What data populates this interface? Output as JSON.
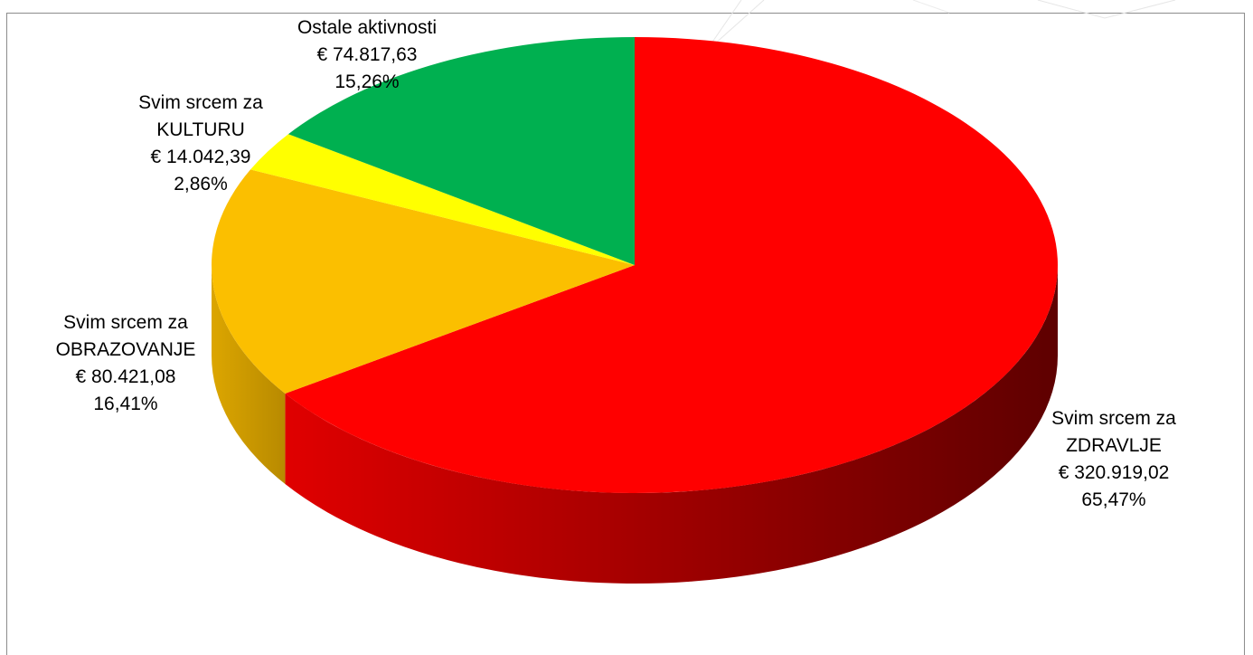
{
  "chart_data": {
    "type": "pie",
    "style": "3d",
    "currency_symbol": "€",
    "slices": [
      {
        "label_lines": [
          "Svim srcem za",
          "ZDRAVLJE"
        ],
        "amount": "€ 320.919,02",
        "percent_label": "65,47%",
        "percent": 65.47,
        "value": 320919.02,
        "color": "#ff0000",
        "side_color_light": "#e00000",
        "side_color_dark": "#5e0000"
      },
      {
        "label_lines": [
          "Svim srcem za",
          "OBRAZOVANJE"
        ],
        "amount": "€ 80.421,08",
        "percent_label": "16,41%",
        "percent": 16.41,
        "value": 80421.08,
        "color": "#fbbf00",
        "side_color_light": "#dca600",
        "side_color_dark": "#b88a00"
      },
      {
        "label_lines": [
          "Svim srcem za",
          "KULTURU"
        ],
        "amount": "€ 14.042,39",
        "percent_label": "2,86%",
        "percent": 2.86,
        "value": 14042.39,
        "color": "#ffff00",
        "side_color_light": "#e0e000",
        "side_color_dark": "#b0b000"
      },
      {
        "label_lines": [
          "Ostale aktivnosti"
        ],
        "amount": "€ 74.817,63",
        "percent_label": "15,26%",
        "percent": 15.26,
        "value": 74817.63,
        "color": "#00b050",
        "side_color_light": "#009a45",
        "side_color_dark": "#006b30"
      }
    ]
  }
}
